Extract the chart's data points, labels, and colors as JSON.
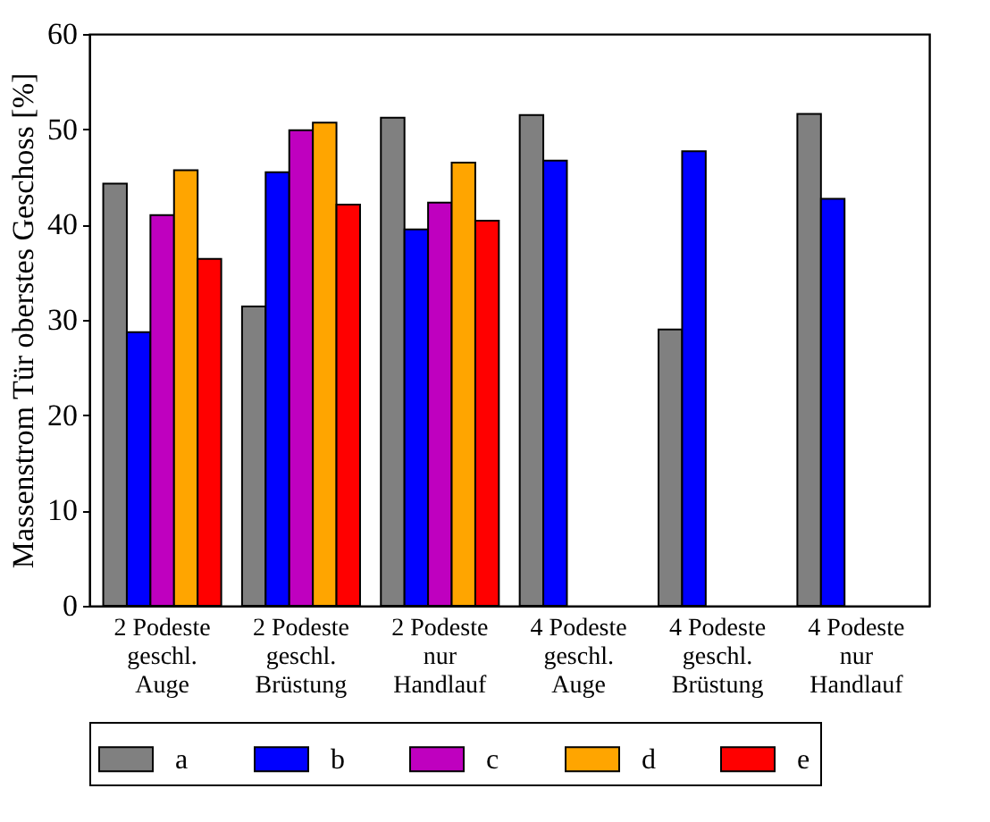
{
  "chart_data": {
    "type": "bar",
    "ylabel": "Massenstrom Tür oberstes Geschoss [%]",
    "categories": [
      "2 Podeste\ngeschl.\nAuge",
      "2 Podeste\ngeschl.\nBrüstung",
      "2 Podeste\nnur\nHandlauf",
      "4 Podeste\ngeschl.\nAuge",
      "4 Podeste\ngeschl.\nBrüstung",
      "4 Podeste\nnur\nHandlauf"
    ],
    "series": [
      {
        "name": "a",
        "color": "#808080",
        "values": [
          44.3,
          31.4,
          51.2,
          51.5,
          29.0,
          51.6
        ]
      },
      {
        "name": "b",
        "color": "#0000ff",
        "values": [
          28.7,
          45.5,
          39.5,
          46.7,
          47.7,
          42.7
        ]
      },
      {
        "name": "c",
        "color": "#bf00bf",
        "values": [
          41.0,
          49.9,
          42.3,
          null,
          null,
          null
        ]
      },
      {
        "name": "d",
        "color": "#ffa500",
        "values": [
          45.7,
          50.7,
          46.5,
          null,
          null,
          null
        ]
      },
      {
        "name": "e",
        "color": "#ff0000",
        "values": [
          36.4,
          42.1,
          40.4,
          null,
          null,
          null
        ]
      }
    ],
    "ylim": [
      0,
      60
    ],
    "yticks": [
      0,
      10,
      20,
      30,
      40,
      50,
      60
    ],
    "grid": false,
    "legend": "bottom"
  }
}
